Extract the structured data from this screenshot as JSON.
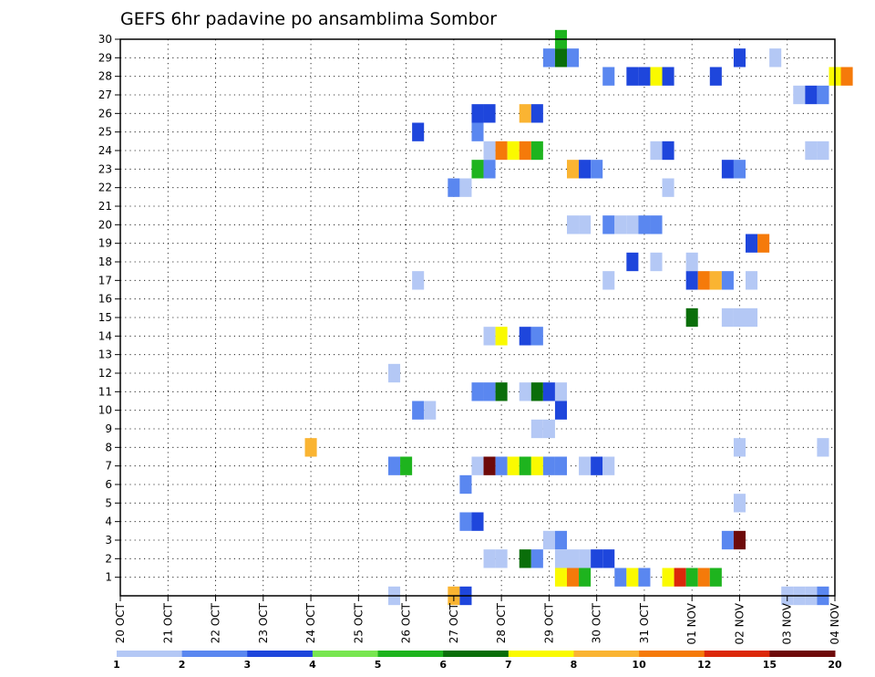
{
  "chart_data": {
    "type": "heatmap",
    "title": "GEFS 6hr padavine po ansamblima Sombor",
    "xlabel": "",
    "ylabel": "",
    "x_ticks": [
      "20 OCT",
      "21 OCT",
      "22 OCT",
      "23 OCT",
      "24 OCT",
      "25 OCT",
      "26 OCT",
      "27 OCT",
      "28 OCT",
      "29 OCT",
      "30 OCT",
      "31 OCT",
      "01 NOV",
      "02 NOV",
      "03 NOV",
      "04 NOV"
    ],
    "xlim": [
      0,
      15
    ],
    "y_ticks": [
      1,
      2,
      3,
      4,
      5,
      6,
      7,
      8,
      9,
      10,
      11,
      12,
      13,
      14,
      15,
      16,
      17,
      18,
      19,
      20,
      21,
      22,
      23,
      24,
      25,
      26,
      27,
      28,
      29,
      30
    ],
    "ylim": [
      0,
      30
    ],
    "grid": true,
    "legend": {
      "position": "bottom",
      "labels": [
        "1",
        "2",
        "3",
        "4",
        "5",
        "6",
        "7",
        "8",
        "10",
        "12",
        "15",
        "20"
      ],
      "colors": [
        "#b4c8f5",
        "#5a87f0",
        "#1e46dc",
        "#78e650",
        "#1eb41e",
        "#0a6e0a",
        "#fafa00",
        "#fab432",
        "#f57a0a",
        "#dc280a",
        "#6e0a0a"
      ]
    },
    "cells": [
      {
        "member": 30,
        "t": 9.25,
        "v": 5
      },
      {
        "member": 29,
        "t": 9.0,
        "v": 2
      },
      {
        "member": 29,
        "t": 9.25,
        "v": 6
      },
      {
        "member": 29,
        "t": 9.5,
        "v": 2
      },
      {
        "member": 29,
        "t": 13.0,
        "v": 3
      },
      {
        "member": 29,
        "t": 13.75,
        "v": 1
      },
      {
        "member": 28,
        "t": 10.25,
        "v": 2
      },
      {
        "member": 28,
        "t": 10.75,
        "v": 3
      },
      {
        "member": 28,
        "t": 11.0,
        "v": 3
      },
      {
        "member": 28,
        "t": 11.25,
        "v": 7
      },
      {
        "member": 28,
        "t": 11.5,
        "v": 3
      },
      {
        "member": 28,
        "t": 12.5,
        "v": 3
      },
      {
        "member": 28,
        "t": 15.0,
        "v": 7
      },
      {
        "member": 28,
        "t": 15.25,
        "v": 10
      },
      {
        "member": 27,
        "t": 14.25,
        "v": 1
      },
      {
        "member": 27,
        "t": 14.5,
        "v": 3
      },
      {
        "member": 27,
        "t": 14.75,
        "v": 2
      },
      {
        "member": 26,
        "t": 7.5,
        "v": 3
      },
      {
        "member": 26,
        "t": 7.75,
        "v": 3
      },
      {
        "member": 26,
        "t": 8.5,
        "v": 8
      },
      {
        "member": 26,
        "t": 8.75,
        "v": 3
      },
      {
        "member": 25,
        "t": 6.25,
        "v": 3
      },
      {
        "member": 25,
        "t": 7.5,
        "v": 2
      },
      {
        "member": 24,
        "t": 7.75,
        "v": 1
      },
      {
        "member": 24,
        "t": 8.0,
        "v": 10
      },
      {
        "member": 24,
        "t": 8.25,
        "v": 7
      },
      {
        "member": 24,
        "t": 8.5,
        "v": 10
      },
      {
        "member": 24,
        "t": 8.75,
        "v": 5
      },
      {
        "member": 24,
        "t": 11.25,
        "v": 1
      },
      {
        "member": 24,
        "t": 11.5,
        "v": 3
      },
      {
        "member": 24,
        "t": 14.5,
        "v": 1
      },
      {
        "member": 24,
        "t": 14.75,
        "v": 1
      },
      {
        "member": 23,
        "t": 7.5,
        "v": 5
      },
      {
        "member": 23,
        "t": 7.75,
        "v": 2
      },
      {
        "member": 23,
        "t": 9.5,
        "v": 8
      },
      {
        "member": 23,
        "t": 9.75,
        "v": 3
      },
      {
        "member": 23,
        "t": 10.0,
        "v": 2
      },
      {
        "member": 23,
        "t": 12.75,
        "v": 3
      },
      {
        "member": 23,
        "t": 13.0,
        "v": 2
      },
      {
        "member": 22,
        "t": 7.0,
        "v": 2
      },
      {
        "member": 22,
        "t": 7.25,
        "v": 1
      },
      {
        "member": 22,
        "t": 11.5,
        "v": 1
      },
      {
        "member": 20,
        "t": 9.5,
        "v": 1
      },
      {
        "member": 20,
        "t": 9.75,
        "v": 1
      },
      {
        "member": 20,
        "t": 10.25,
        "v": 2
      },
      {
        "member": 20,
        "t": 10.5,
        "v": 1
      },
      {
        "member": 20,
        "t": 10.75,
        "v": 1
      },
      {
        "member": 20,
        "t": 11.0,
        "v": 2
      },
      {
        "member": 20,
        "t": 11.25,
        "v": 2
      },
      {
        "member": 19,
        "t": 13.25,
        "v": 3
      },
      {
        "member": 19,
        "t": 13.5,
        "v": 10
      },
      {
        "member": 18,
        "t": 10.75,
        "v": 3
      },
      {
        "member": 18,
        "t": 11.25,
        "v": 1
      },
      {
        "member": 18,
        "t": 12.0,
        "v": 1
      },
      {
        "member": 17,
        "t": 6.25,
        "v": 1
      },
      {
        "member": 17,
        "t": 10.25,
        "v": 1
      },
      {
        "member": 17,
        "t": 12.0,
        "v": 3
      },
      {
        "member": 17,
        "t": 12.25,
        "v": 10
      },
      {
        "member": 17,
        "t": 12.5,
        "v": 8
      },
      {
        "member": 17,
        "t": 12.75,
        "v": 2
      },
      {
        "member": 17,
        "t": 13.25,
        "v": 1
      },
      {
        "member": 15,
        "t": 12.0,
        "v": 6
      },
      {
        "member": 15,
        "t": 12.75,
        "v": 1
      },
      {
        "member": 15,
        "t": 13.0,
        "v": 1
      },
      {
        "member": 15,
        "t": 13.25,
        "v": 1
      },
      {
        "member": 14,
        "t": 7.75,
        "v": 1
      },
      {
        "member": 14,
        "t": 8.0,
        "v": 7
      },
      {
        "member": 14,
        "t": 8.5,
        "v": 3
      },
      {
        "member": 14,
        "t": 8.75,
        "v": 2
      },
      {
        "member": 12,
        "t": 5.75,
        "v": 1
      },
      {
        "member": 11,
        "t": 7.5,
        "v": 2
      },
      {
        "member": 11,
        "t": 7.75,
        "v": 2
      },
      {
        "member": 11,
        "t": 8.0,
        "v": 6
      },
      {
        "member": 11,
        "t": 8.5,
        "v": 1
      },
      {
        "member": 11,
        "t": 8.75,
        "v": 6
      },
      {
        "member": 11,
        "t": 9.0,
        "v": 3
      },
      {
        "member": 11,
        "t": 9.25,
        "v": 1
      },
      {
        "member": 10,
        "t": 6.25,
        "v": 2
      },
      {
        "member": 10,
        "t": 6.5,
        "v": 1
      },
      {
        "member": 10,
        "t": 9.25,
        "v": 3
      },
      {
        "member": 9,
        "t": 8.75,
        "v": 1
      },
      {
        "member": 9,
        "t": 9.0,
        "v": 1
      },
      {
        "member": 8,
        "t": 4.0,
        "v": 8
      },
      {
        "member": 8,
        "t": 13.0,
        "v": 1
      },
      {
        "member": 8,
        "t": 14.75,
        "v": 1
      },
      {
        "member": 7,
        "t": 5.75,
        "v": 2
      },
      {
        "member": 7,
        "t": 6.0,
        "v": 5
      },
      {
        "member": 7,
        "t": 7.5,
        "v": 1
      },
      {
        "member": 7,
        "t": 7.75,
        "v": 15
      },
      {
        "member": 7,
        "t": 8.0,
        "v": 2
      },
      {
        "member": 7,
        "t": 8.25,
        "v": 7
      },
      {
        "member": 7,
        "t": 8.5,
        "v": 5
      },
      {
        "member": 7,
        "t": 8.75,
        "v": 7
      },
      {
        "member": 7,
        "t": 9.0,
        "v": 2
      },
      {
        "member": 7,
        "t": 9.25,
        "v": 2
      },
      {
        "member": 7,
        "t": 9.75,
        "v": 1
      },
      {
        "member": 7,
        "t": 10.0,
        "v": 3
      },
      {
        "member": 7,
        "t": 10.25,
        "v": 1
      },
      {
        "member": 6,
        "t": 7.25,
        "v": 2
      },
      {
        "member": 5,
        "t": 13.0,
        "v": 1
      },
      {
        "member": 4,
        "t": 7.25,
        "v": 2
      },
      {
        "member": 4,
        "t": 7.5,
        "v": 3
      },
      {
        "member": 3,
        "t": 9.0,
        "v": 1
      },
      {
        "member": 3,
        "t": 9.25,
        "v": 2
      },
      {
        "member": 3,
        "t": 12.75,
        "v": 2
      },
      {
        "member": 3,
        "t": 13.0,
        "v": 20
      },
      {
        "member": 2,
        "t": 7.75,
        "v": 1
      },
      {
        "member": 2,
        "t": 8.0,
        "v": 1
      },
      {
        "member": 2,
        "t": 8.5,
        "v": 6
      },
      {
        "member": 2,
        "t": 8.75,
        "v": 2
      },
      {
        "member": 2,
        "t": 9.25,
        "v": 1
      },
      {
        "member": 2,
        "t": 9.5,
        "v": 1
      },
      {
        "member": 2,
        "t": 9.75,
        "v": 1
      },
      {
        "member": 2,
        "t": 10.0,
        "v": 3
      },
      {
        "member": 2,
        "t": 10.25,
        "v": 3
      },
      {
        "member": 1,
        "t": 9.25,
        "v": 7
      },
      {
        "member": 1,
        "t": 9.5,
        "v": 10
      },
      {
        "member": 1,
        "t": 9.75,
        "v": 5
      },
      {
        "member": 1,
        "t": 10.5,
        "v": 2
      },
      {
        "member": 1,
        "t": 10.75,
        "v": 7
      },
      {
        "member": 1,
        "t": 11.0,
        "v": 2
      },
      {
        "member": 1,
        "t": 11.5,
        "v": 7
      },
      {
        "member": 1,
        "t": 11.75,
        "v": 12
      },
      {
        "member": 1,
        "t": 12.0,
        "v": 5
      },
      {
        "member": 1,
        "t": 12.25,
        "v": 10
      },
      {
        "member": 1,
        "t": 12.5,
        "v": 5
      },
      {
        "member": 0,
        "t": 5.75,
        "v": 1
      },
      {
        "member": 0,
        "t": 7.0,
        "v": 8
      },
      {
        "member": 0,
        "t": 7.25,
        "v": 3
      },
      {
        "member": 0,
        "t": 14.0,
        "v": 1
      },
      {
        "member": 0,
        "t": 14.25,
        "v": 1
      },
      {
        "member": 0,
        "t": 14.5,
        "v": 1
      },
      {
        "member": 0,
        "t": 14.75,
        "v": 2
      }
    ]
  }
}
